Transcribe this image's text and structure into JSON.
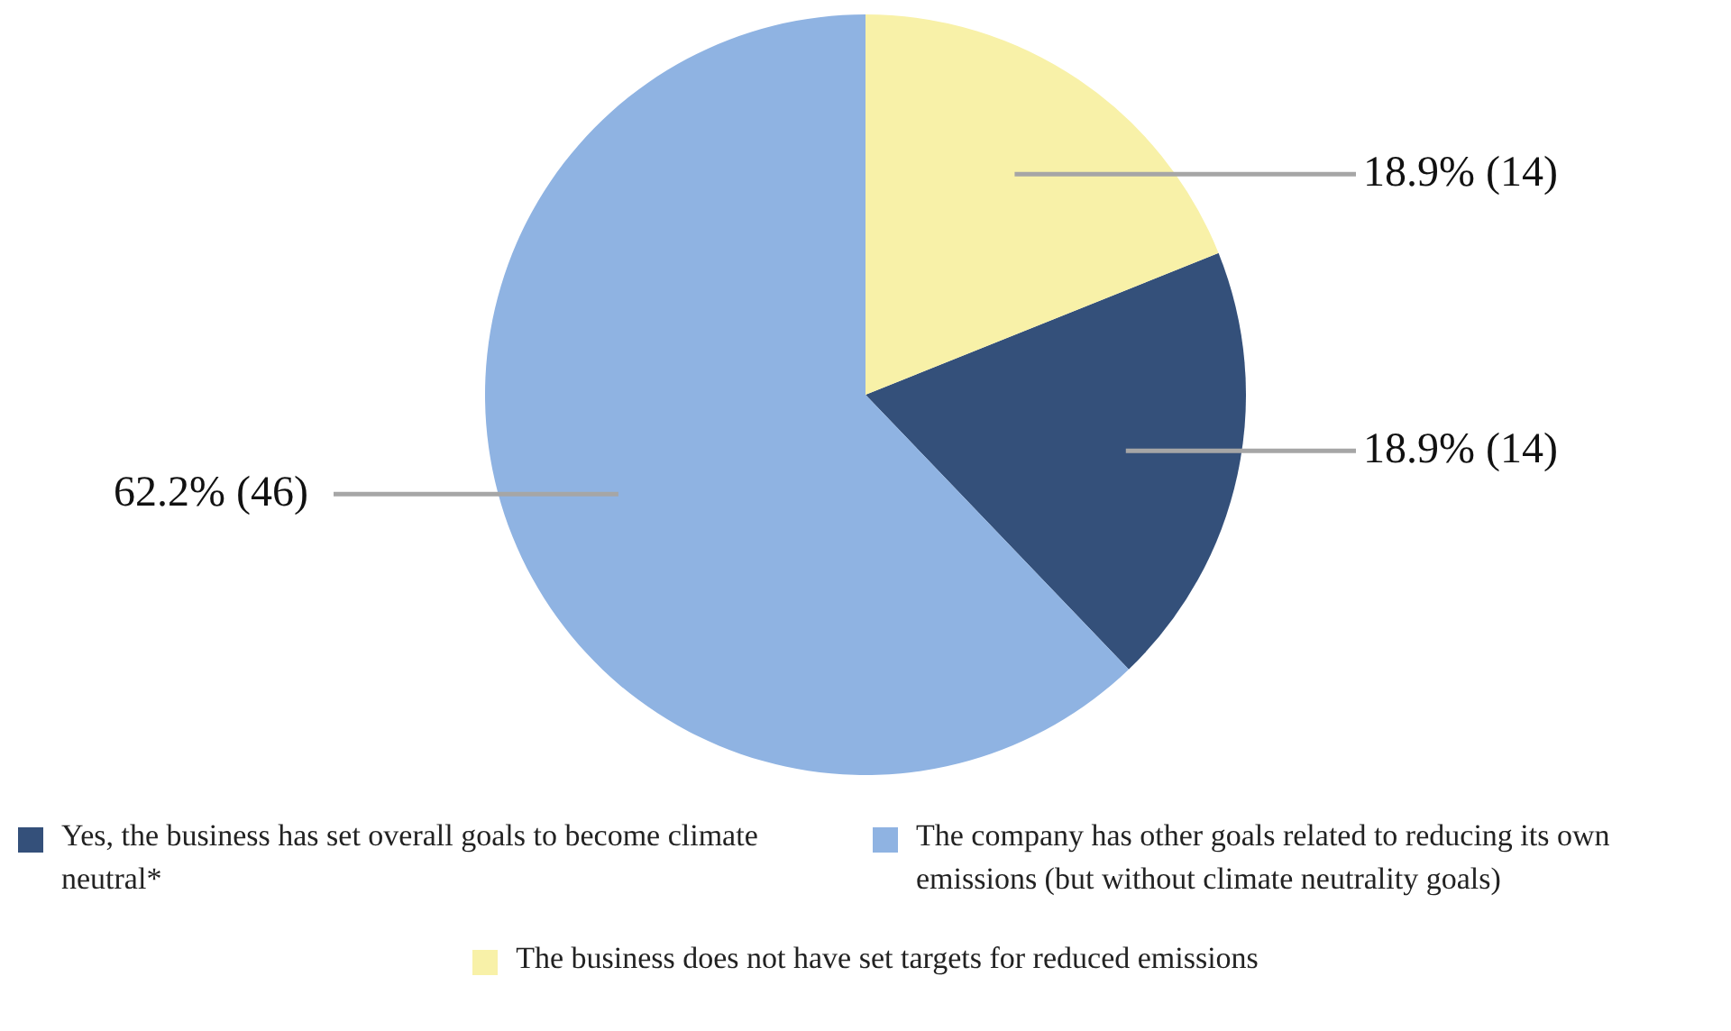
{
  "chart_data": {
    "type": "pie",
    "categories": [
      "Yes, the business has set overall goals to become climate neutral*",
      "The company has other goals related to reducing its own emissions (but without climate neutrality goals)",
      "The business does not have set targets for reduced emissions"
    ],
    "values": [
      14,
      46,
      14
    ],
    "colors": [
      "#34507a",
      "#8fb3e2",
      "#f8f1a8"
    ],
    "value_labels": [
      "18.9% (14)",
      "62.2% (46)",
      "18.9% (14)"
    ],
    "legend": "bottom"
  }
}
